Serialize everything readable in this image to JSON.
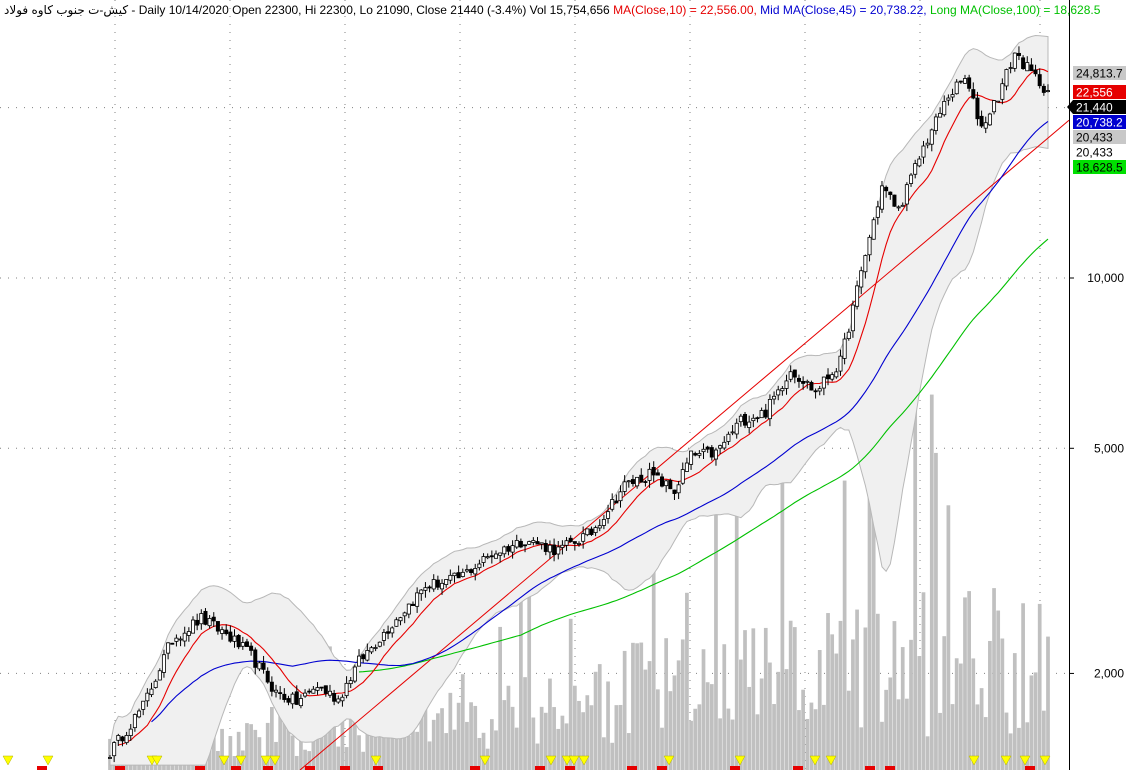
{
  "header": {
    "symbol": "کیش-ت جنوب کاوه فولاد",
    "sep": " - ",
    "stats": "Daily 10/14/2020 Open 22300, Hi 22300, Lo 21090, Close 21440 (-3.4%) Vol 15,754,656",
    "ma_short": "MA(Close,10) = 22,556.00,",
    "ma_mid": "Mid MA(Close,45) = 20,738.22,",
    "ma_long": "Long MA(Close,100) = 18,628.5"
  },
  "colors": {
    "price": "#000000",
    "ma_short": "#e60000",
    "ma_mid": "#0000d0",
    "ma_long": "#00c000",
    "trendline": "#e60000",
    "bollinger_fill": "#f0f0f0",
    "bollinger_line": "#b8b8b8",
    "volume": "#c0c0c0",
    "grid": "#808080",
    "signal_down": "#ffff00",
    "signal_up": "#e60000"
  },
  "chart_data": {
    "type": "candlestick",
    "y_scale": "log",
    "y_ticks": [
      {
        "value": 2000,
        "label": "2,000"
      },
      {
        "value": 5000,
        "label": "5,000"
      },
      {
        "value": 10000,
        "label": "10,000"
      }
    ],
    "ylim": [
      1350,
      31000
    ],
    "grid": true,
    "price_tags": [
      {
        "value": 24813.7,
        "label": "24,813.7",
        "bg": "#c8c8c8",
        "fg": "#000000"
      },
      {
        "value": 22556,
        "label": "22,556",
        "bg": "#e60000",
        "fg": "#ffffff"
      },
      {
        "value": 21440,
        "label": "21,440",
        "bg": "#000000",
        "fg": "#ffffff",
        "pointer": true
      },
      {
        "value": 20738.2,
        "label": "20,738.2",
        "bg": "#0000d0",
        "fg": "#ffffff"
      },
      {
        "value": 20433,
        "label": "20,433",
        "bg": "#c8c8c8",
        "fg": "#000000"
      },
      {
        "value": 20433,
        "label": "20,433",
        "bg": "#ffffff",
        "fg": "#000000"
      },
      {
        "value": 18628.5,
        "label": "18,628.5",
        "bg": "#00e000",
        "fg": "#000000"
      }
    ],
    "trend_anchor_points": [
      {
        "bar": 0,
        "close": 1450
      },
      {
        "bar": 8,
        "close": 1750
      },
      {
        "bar": 15,
        "close": 2300
      },
      {
        "bar": 22,
        "close": 2500
      },
      {
        "bar": 28,
        "close": 2350
      },
      {
        "bar": 34,
        "close": 2150
      },
      {
        "bar": 40,
        "close": 1850
      },
      {
        "bar": 45,
        "close": 1780
      },
      {
        "bar": 50,
        "close": 1900
      },
      {
        "bar": 55,
        "close": 1800
      },
      {
        "bar": 60,
        "close": 2100
      },
      {
        "bar": 68,
        "close": 2450
      },
      {
        "bar": 76,
        "close": 2850
      },
      {
        "bar": 84,
        "close": 2950
      },
      {
        "bar": 92,
        "close": 3250
      },
      {
        "bar": 100,
        "close": 3450
      },
      {
        "bar": 108,
        "close": 3300
      },
      {
        "bar": 116,
        "close": 3550
      },
      {
        "bar": 124,
        "close": 4300
      },
      {
        "bar": 130,
        "close": 4500
      },
      {
        "bar": 136,
        "close": 4200
      },
      {
        "bar": 140,
        "close": 4850
      },
      {
        "bar": 146,
        "close": 4900
      },
      {
        "bar": 152,
        "close": 5600
      },
      {
        "bar": 158,
        "close": 5800
      },
      {
        "bar": 164,
        "close": 6900
      },
      {
        "bar": 170,
        "close": 6300
      },
      {
        "bar": 176,
        "close": 7100
      },
      {
        "bar": 182,
        "close": 11000
      },
      {
        "bar": 186,
        "close": 14500
      },
      {
        "bar": 190,
        "close": 13200
      },
      {
        "bar": 196,
        "close": 17000
      },
      {
        "bar": 202,
        "close": 21000
      },
      {
        "bar": 206,
        "close": 22500
      },
      {
        "bar": 210,
        "close": 18500
      },
      {
        "bar": 214,
        "close": 21000
      },
      {
        "bar": 218,
        "close": 25000
      },
      {
        "bar": 222,
        "close": 23000
      },
      {
        "bar": 226,
        "close": 21440
      }
    ],
    "bars_total": 227
  }
}
